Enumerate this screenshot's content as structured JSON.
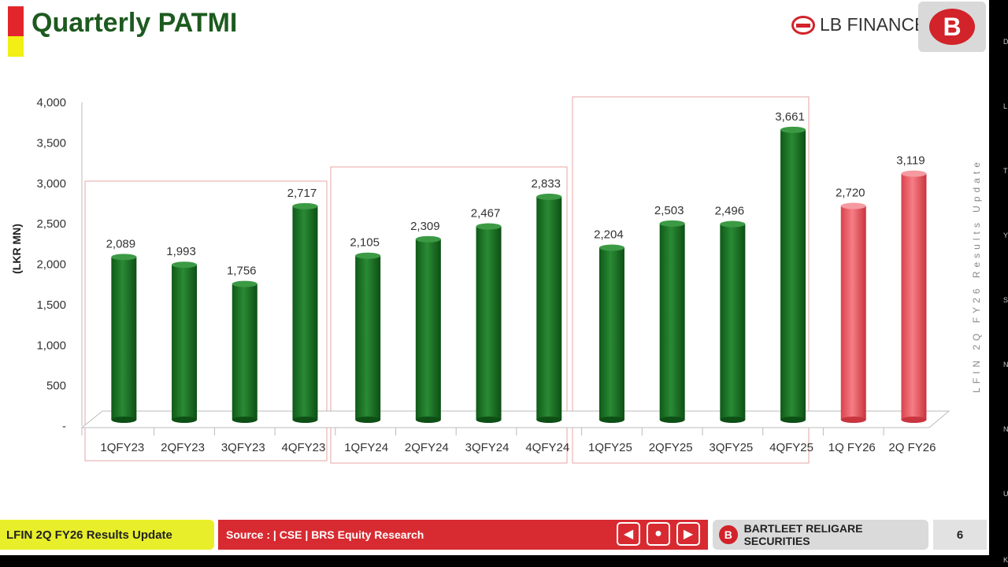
{
  "header": {
    "title": "Quarterly PATMI",
    "brand": "LB FINANCE",
    "brs_logo": "B"
  },
  "side_text": "LFIN 2Q FY26 Results Update",
  "right_strip_fragments": [
    "D",
    "L",
    "T",
    "Y",
    "S",
    "N",
    "N",
    "U",
    "K"
  ],
  "footer": {
    "left": "LFIN 2Q FY26 Results Update",
    "source": "Source : | CSE | BRS Equity Research",
    "brs": "BARTLEET RELIGARE SECURITIES",
    "page": "6",
    "nav": {
      "prev": "◀",
      "home": "●",
      "next": "▶"
    }
  },
  "colors": {
    "green": "#1f7a2a",
    "red": "#f0606a",
    "accent": "#d72b31",
    "title": "#1d5a1f"
  },
  "chart_data": {
    "type": "bar",
    "ylabel": "(LKR MN)",
    "ylim": [
      0,
      4000
    ],
    "yticks": [
      0,
      500,
      1000,
      1500,
      2000,
      2500,
      3000,
      3500,
      4000
    ],
    "ytick_labels": [
      "-",
      "500",
      "1,000",
      "1,500",
      "2,000",
      "2,500",
      "3,000",
      "3,500",
      "4,000"
    ],
    "categories": [
      "1QFY23",
      "2QFY23",
      "3QFY23",
      "4QFY23",
      "1QFY24",
      "2QFY24",
      "3QFY24",
      "4QFY24",
      "1QFY25",
      "2QFY25",
      "3QFY25",
      "4QFY25",
      "1Q FY26",
      "2Q FY26"
    ],
    "values": [
      2089,
      1993,
      1756,
      2717,
      2105,
      2309,
      2467,
      2833,
      2204,
      2503,
      2496,
      3661,
      2720,
      3119
    ],
    "data_labels": [
      "2,089",
      "1,993",
      "1,756",
      "2,717",
      "2,105",
      "2,309",
      "2,467",
      "2,833",
      "2,204",
      "2,503",
      "2,496",
      "3,661",
      "2,720",
      "3,119"
    ],
    "highlight": [
      false,
      false,
      false,
      false,
      false,
      false,
      false,
      false,
      false,
      false,
      false,
      false,
      true,
      true
    ],
    "grid": false,
    "legend": "none"
  }
}
